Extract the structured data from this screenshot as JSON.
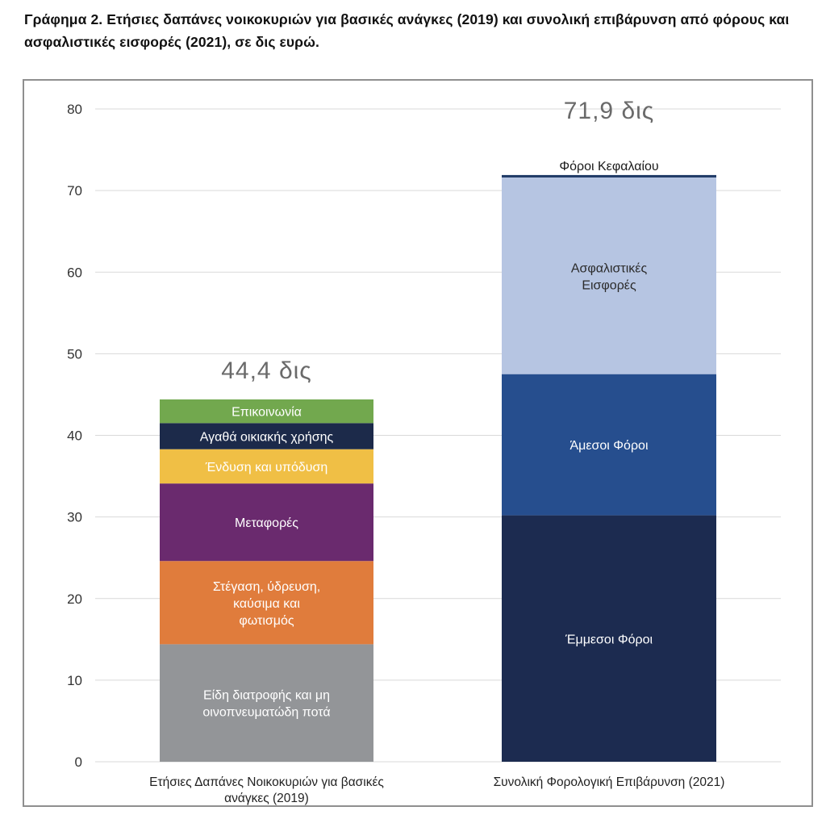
{
  "caption": "Γράφημα 2. Ετήσιες δαπάνες νοικοκυριών για βασικές ανάγκες (2019) και συνολική επιβάρυνση από φόρους και ασφαλιστικές εισφορές (2021), σε δις ευρώ.",
  "chart_data": {
    "type": "bar",
    "stacked": true,
    "grid": true,
    "ylim": [
      0,
      80
    ],
    "yticks": [
      0,
      10,
      20,
      30,
      40,
      50,
      60,
      70,
      80
    ],
    "categories": [
      "Ετήσιες Δαπάνες Νοικοκυριών για βασικές ανάγκες (2019)",
      "Συνολική Φορολογική Επιβάρυνση (2021)"
    ],
    "category_label_lines": [
      [
        "Ετήσιες Δαπάνες Νοικοκυριών για βασικές",
        "ανάγκες (2019)"
      ],
      [
        "Συνολική Φορολογική Επιβάρυνση (2021)"
      ]
    ],
    "totals": [
      "44,4 δις",
      "71,9 δις"
    ],
    "stacks": [
      [
        {
          "name": "Είδη διατροφής και μη οινοπνευματώδη ποτά",
          "lines": [
            "Είδη διατροφής και μη",
            "οινοπνευματώδη ποτά"
          ],
          "value": 14.4,
          "color": "#939598",
          "text_color": "#ffffff"
        },
        {
          "name": "Στέγαση, ύδρευση, καύσιμα και φωτισμός",
          "lines": [
            "Στέγαση, ύδρευση,",
            "καύσιμα και",
            "φωτισμός"
          ],
          "value": 10.2,
          "color": "#e07c3c",
          "text_color": "#ffffff"
        },
        {
          "name": "Μεταφορές",
          "lines": [
            "Μεταφορές"
          ],
          "value": 9.5,
          "color": "#6a2a6e",
          "text_color": "#ffffff"
        },
        {
          "name": "Ένδυση και υπόδυση",
          "lines": [
            "Ένδυση και υπόδυση"
          ],
          "value": 4.2,
          "color": "#f0bf45",
          "text_color": "#ffffff"
        },
        {
          "name": "Αγαθά οικιακής χρήσης",
          "lines": [
            "Αγαθά οικιακής χρήσης"
          ],
          "value": 3.2,
          "color": "#1c2a4a",
          "text_color": "#ffffff"
        },
        {
          "name": "Επικοινωνία",
          "lines": [
            "Επικοινωνία"
          ],
          "value": 2.9,
          "color": "#72a84e",
          "text_color": "#ffffff"
        }
      ],
      [
        {
          "name": "Έμμεσοι Φόροι",
          "lines": [
            "Έμμεσοι Φόροι"
          ],
          "value": 30.2,
          "color": "#1c2b50",
          "text_color": "#ffffff"
        },
        {
          "name": "Άμεσοι Φόροι",
          "lines": [
            "Άμεσοι Φόροι"
          ],
          "value": 17.3,
          "color": "#264e8e",
          "text_color": "#ffffff"
        },
        {
          "name": "Ασφαλιστικές Εισφορές",
          "lines": [
            "Ασφαλιστικές",
            "Εισφορές"
          ],
          "value": 24.1,
          "color": "#b6c5e2",
          "text_color": "#2b2b2b"
        },
        {
          "name": "Φόροι Κεφαλαίου",
          "lines": [
            "Φόροι Κεφαλαίου"
          ],
          "value": 0.3,
          "color": "#1f3a66",
          "text_color": "#1a1a1a",
          "label_above": true
        }
      ]
    ]
  }
}
